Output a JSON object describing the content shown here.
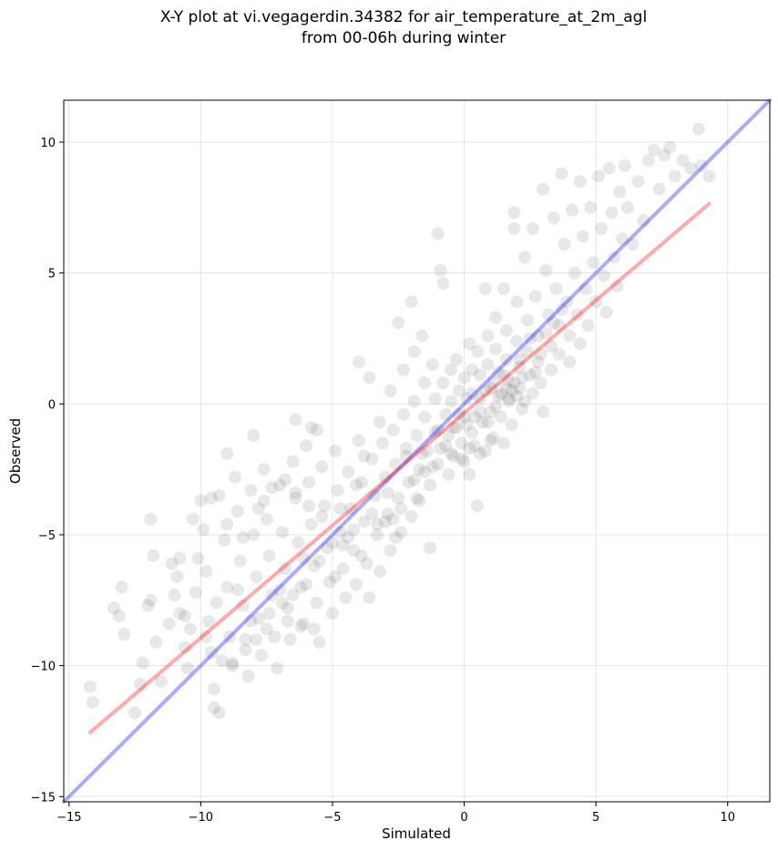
{
  "chart_data": {
    "type": "scatter",
    "title": [
      "X-Y plot at vi.vegagerdin.34382 for air_temperature_at_2m_agl",
      "from 00-06h during winter"
    ],
    "xlabel": "Simulated",
    "ylabel": "Observed",
    "xlim": [
      -15.2,
      11.6
    ],
    "ylim": [
      -15.2,
      11.6
    ],
    "xticks": [
      -15,
      -10,
      -5,
      0,
      5,
      10
    ],
    "yticks": [
      -15,
      -10,
      -5,
      0,
      5,
      10
    ],
    "xtick_labels": [
      "−15",
      "−10",
      "−5",
      "0",
      "5",
      "10"
    ],
    "ytick_labels": [
      "−15",
      "−10",
      "−5",
      "0",
      "5",
      "10"
    ],
    "grid": true,
    "colors": {
      "points": "#000000",
      "identity_line": "#0000ff",
      "fit_line": "#ff0000",
      "grid": "#e5e5e5"
    },
    "points": [
      [
        -14.2,
        -10.8
      ],
      [
        -14.1,
        -11.4
      ],
      [
        -13.3,
        -7.8
      ],
      [
        -13.1,
        -8.1
      ],
      [
        -13.0,
        -7.0
      ],
      [
        -12.9,
        -8.8
      ],
      [
        -12.5,
        -11.8
      ],
      [
        -12.3,
        -10.7
      ],
      [
        -12.2,
        -9.9
      ],
      [
        -12.0,
        -7.7
      ],
      [
        -11.9,
        -7.5
      ],
      [
        -11.8,
        -5.8
      ],
      [
        -11.9,
        -4.4
      ],
      [
        -11.7,
        -9.1
      ],
      [
        -11.5,
        -10.6
      ],
      [
        -11.1,
        -6.1
      ],
      [
        -11.0,
        -7.3
      ],
      [
        -10.9,
        -6.6
      ],
      [
        -10.8,
        -8.0
      ],
      [
        -10.6,
        -9.3
      ],
      [
        -10.5,
        -10.1
      ],
      [
        -10.4,
        -8.6
      ],
      [
        -10.2,
        -7.2
      ],
      [
        -10.1,
        -5.9
      ],
      [
        -10.0,
        -3.7
      ],
      [
        -9.9,
        -4.8
      ],
      [
        -9.8,
        -6.4
      ],
      [
        -9.7,
        -8.3
      ],
      [
        -9.6,
        -9.5
      ],
      [
        -9.5,
        -10.9
      ],
      [
        -9.5,
        -11.6
      ],
      [
        -9.3,
        -11.8
      ],
      [
        -9.3,
        -3.5
      ],
      [
        -9.1,
        -5.2
      ],
      [
        -9.0,
        -7.0
      ],
      [
        -8.9,
        -8.9
      ],
      [
        -8.8,
        -10.0
      ],
      [
        -8.7,
        -2.8
      ],
      [
        -8.6,
        -4.1
      ],
      [
        -8.5,
        -6.0
      ],
      [
        -8.4,
        -7.7
      ],
      [
        -8.3,
        -9.0
      ],
      [
        -8.2,
        -10.4
      ],
      [
        -8.1,
        -3.3
      ],
      [
        -8.0,
        -5.0
      ],
      [
        -8.0,
        -1.2
      ],
      [
        -7.9,
        -6.6
      ],
      [
        -7.8,
        -8.2
      ],
      [
        -7.7,
        -9.6
      ],
      [
        -7.6,
        -2.5
      ],
      [
        -7.5,
        -4.4
      ],
      [
        -7.4,
        -5.8
      ],
      [
        -7.3,
        -7.3
      ],
      [
        -7.2,
        -8.9
      ],
      [
        -7.1,
        -10.1
      ],
      [
        -7.0,
        -3.1
      ],
      [
        -6.9,
        -4.9
      ],
      [
        -6.8,
        -6.3
      ],
      [
        -6.7,
        -7.8
      ],
      [
        -6.6,
        -9.0
      ],
      [
        -6.5,
        -2.2
      ],
      [
        -6.4,
        -3.6
      ],
      [
        -6.4,
        -0.6
      ],
      [
        -6.3,
        -5.3
      ],
      [
        -6.2,
        -7.0
      ],
      [
        -6.1,
        -8.4
      ],
      [
        -6.0,
        -1.6
      ],
      [
        -5.9,
        -3.0
      ],
      [
        -5.8,
        -4.6
      ],
      [
        -5.8,
        -0.9
      ],
      [
        -5.7,
        -6.2
      ],
      [
        -5.6,
        -7.6
      ],
      [
        -5.5,
        -9.1
      ],
      [
        -5.4,
        -2.4
      ],
      [
        -5.3,
        -3.9
      ],
      [
        -5.2,
        -5.5
      ],
      [
        -5.1,
        -6.8
      ],
      [
        -5.0,
        -8.0
      ],
      [
        -4.9,
        -1.8
      ],
      [
        -4.8,
        -3.3
      ],
      [
        -4.7,
        -4.9
      ],
      [
        -4.6,
        -6.3
      ],
      [
        -4.5,
        -7.4
      ],
      [
        -4.4,
        -2.6
      ],
      [
        -4.3,
        -4.0
      ],
      [
        -4.2,
        -5.6
      ],
      [
        -4.1,
        -6.9
      ],
      [
        -4.0,
        1.6
      ],
      [
        -4.0,
        -1.4
      ],
      [
        -3.9,
        -3.0
      ],
      [
        -3.8,
        -4.5
      ],
      [
        -3.7,
        -6.1
      ],
      [
        -3.6,
        -7.4
      ],
      [
        -3.6,
        1.0
      ],
      [
        -3.5,
        -2.1
      ],
      [
        -3.4,
        -3.5
      ],
      [
        -3.3,
        -5.0
      ],
      [
        -3.2,
        -6.4
      ],
      [
        -3.2,
        -0.7
      ],
      [
        -3.1,
        -1.5
      ],
      [
        -3.0,
        -2.8
      ],
      [
        -2.9,
        -4.2
      ],
      [
        -2.8,
        -5.6
      ],
      [
        -2.8,
        0.5
      ],
      [
        -2.7,
        -1.0
      ],
      [
        -2.6,
        -2.3
      ],
      [
        -2.5,
        -3.6
      ],
      [
        -2.5,
        3.1
      ],
      [
        -2.4,
        -4.9
      ],
      [
        -2.3,
        1.3
      ],
      [
        -2.3,
        -0.4
      ],
      [
        -2.2,
        -1.7
      ],
      [
        -2.1,
        -3.0
      ],
      [
        -2.0,
        3.9
      ],
      [
        -2.0,
        -4.3
      ],
      [
        -1.9,
        2.0
      ],
      [
        -1.9,
        0.1
      ],
      [
        -1.8,
        -1.2
      ],
      [
        -1.7,
        -2.5
      ],
      [
        -1.7,
        -3.7
      ],
      [
        -1.6,
        2.6
      ],
      [
        -1.5,
        0.8
      ],
      [
        -1.5,
        -0.5
      ],
      [
        -1.4,
        -1.8
      ],
      [
        -1.3,
        -3.1
      ],
      [
        -1.3,
        -5.5
      ],
      [
        -1.2,
        1.5
      ],
      [
        -1.1,
        0.2
      ],
      [
        -1.1,
        -1.1
      ],
      [
        -1.0,
        -2.3
      ],
      [
        -1.0,
        6.5
      ],
      [
        -0.9,
        5.1
      ],
      [
        -0.8,
        4.6
      ],
      [
        -0.8,
        0.8
      ],
      [
        -0.7,
        -0.4
      ],
      [
        -0.7,
        -1.6
      ],
      [
        -0.6,
        -2.7
      ],
      [
        -0.5,
        1.3
      ],
      [
        -0.5,
        0.1
      ],
      [
        -0.4,
        -0.9
      ],
      [
        -0.4,
        -2.0
      ],
      [
        -0.3,
        1.7
      ],
      [
        -0.2,
        0.5
      ],
      [
        -0.2,
        -0.4
      ],
      [
        -0.1,
        -1.5
      ],
      [
        0.0,
        -2.2
      ],
      [
        0.0,
        1.0
      ],
      [
        0.1,
        0.2
      ],
      [
        0.1,
        -0.8
      ],
      [
        0.2,
        -2.7
      ],
      [
        0.2,
        2.3
      ],
      [
        0.3,
        1.3
      ],
      [
        0.3,
        0.4
      ],
      [
        0.4,
        -0.5
      ],
      [
        0.4,
        -1.6
      ],
      [
        0.5,
        -3.9
      ],
      [
        0.5,
        2.0
      ],
      [
        0.6,
        1.1
      ],
      [
        0.6,
        0.2
      ],
      [
        0.7,
        -0.7
      ],
      [
        0.8,
        -1.8
      ],
      [
        0.8,
        4.4
      ],
      [
        0.9,
        2.6
      ],
      [
        0.9,
        1.5
      ],
      [
        1.0,
        0.6
      ],
      [
        1.0,
        -0.3
      ],
      [
        1.1,
        -1.3
      ],
      [
        1.2,
        3.3
      ],
      [
        1.2,
        2.1
      ],
      [
        1.3,
        1.2
      ],
      [
        1.3,
        0.3
      ],
      [
        1.4,
        -0.5
      ],
      [
        1.5,
        -1.5
      ],
      [
        1.5,
        4.4
      ],
      [
        1.6,
        2.8
      ],
      [
        1.6,
        1.7
      ],
      [
        1.7,
        0.9
      ],
      [
        1.7,
        0.1
      ],
      [
        1.8,
        -0.8
      ],
      [
        1.9,
        7.3
      ],
      [
        1.9,
        6.7
      ],
      [
        2.0,
        3.9
      ],
      [
        2.0,
        2.4
      ],
      [
        2.1,
        1.4
      ],
      [
        2.1,
        0.6
      ],
      [
        2.2,
        -0.2
      ],
      [
        2.3,
        5.6
      ],
      [
        2.4,
        3.2
      ],
      [
        2.4,
        2.0
      ],
      [
        2.5,
        1.1
      ],
      [
        2.6,
        0.4
      ],
      [
        2.6,
        6.7
      ],
      [
        2.7,
        4.1
      ],
      [
        2.8,
        2.6
      ],
      [
        2.8,
        1.6
      ],
      [
        2.9,
        0.8
      ],
      [
        3.0,
        -0.3
      ],
      [
        3.0,
        8.2
      ],
      [
        3.1,
        5.1
      ],
      [
        3.2,
        3.4
      ],
      [
        3.3,
        2.2
      ],
      [
        3.3,
        1.3
      ],
      [
        3.4,
        7.1
      ],
      [
        3.5,
        4.4
      ],
      [
        3.6,
        3.0
      ],
      [
        3.6,
        1.9
      ],
      [
        3.7,
        8.8
      ],
      [
        3.8,
        6.1
      ],
      [
        3.9,
        3.9
      ],
      [
        4.0,
        2.6
      ],
      [
        4.0,
        1.6
      ],
      [
        4.1,
        7.4
      ],
      [
        4.2,
        5.0
      ],
      [
        4.3,
        3.4
      ],
      [
        4.4,
        2.3
      ],
      [
        4.4,
        8.5
      ],
      [
        4.5,
        6.4
      ],
      [
        4.6,
        4.4
      ],
      [
        4.7,
        3.0
      ],
      [
        4.8,
        7.5
      ],
      [
        4.9,
        5.4
      ],
      [
        5.0,
        3.9
      ],
      [
        5.1,
        8.7
      ],
      [
        5.2,
        6.7
      ],
      [
        5.3,
        4.9
      ],
      [
        5.4,
        3.5
      ],
      [
        5.5,
        9.0
      ],
      [
        5.6,
        7.3
      ],
      [
        5.7,
        5.6
      ],
      [
        5.8,
        4.5
      ],
      [
        5.9,
        8.1
      ],
      [
        6.0,
        6.3
      ],
      [
        6.1,
        9.1
      ],
      [
        6.2,
        7.5
      ],
      [
        6.4,
        6.1
      ],
      [
        6.6,
        8.5
      ],
      [
        6.8,
        7.0
      ],
      [
        7.0,
        9.3
      ],
      [
        7.2,
        9.7
      ],
      [
        7.4,
        8.2
      ],
      [
        7.6,
        9.5
      ],
      [
        7.8,
        9.8
      ],
      [
        8.0,
        8.7
      ],
      [
        8.3,
        9.3
      ],
      [
        8.6,
        9.0
      ],
      [
        8.9,
        10.5
      ],
      [
        9.0,
        9.1
      ],
      [
        9.3,
        8.7
      ],
      [
        -9.0,
        -1.9
      ],
      [
        -7.6,
        -3.7
      ],
      [
        -6.9,
        -7.6
      ],
      [
        -6.1,
        -5.9
      ],
      [
        -5.6,
        -1.0
      ],
      [
        -4.9,
        -6.6
      ],
      [
        -4.1,
        -3.1
      ],
      [
        -3.8,
        -2.0
      ],
      [
        -3.3,
        -4.6
      ],
      [
        -2.9,
        -3.4
      ],
      [
        -2.6,
        -5.1
      ],
      [
        -2.2,
        -2.0
      ],
      [
        -1.8,
        -3.6
      ],
      [
        -1.5,
        -2.6
      ],
      [
        -1.0,
        -1.0
      ],
      [
        -0.6,
        -1.2
      ],
      [
        -0.3,
        -0.9
      ],
      [
        0.0,
        -0.5
      ],
      [
        0.3,
        -1.1
      ],
      [
        0.6,
        -0.3
      ],
      [
        0.9,
        -0.7
      ],
      [
        1.2,
        -0.1
      ],
      [
        1.4,
        0.4
      ],
      [
        1.6,
        0.6
      ],
      [
        1.8,
        0.5
      ],
      [
        1.9,
        0.8
      ],
      [
        2.0,
        0.3
      ],
      [
        2.1,
        1.7
      ],
      [
        2.2,
        1.0
      ],
      [
        2.3,
        0.1
      ],
      [
        1.5,
        1.1
      ],
      [
        1.7,
        0.2
      ],
      [
        1.1,
        0.8
      ],
      [
        0.8,
        0.5
      ],
      [
        2.5,
        2.5
      ],
      [
        2.7,
        1.2
      ],
      [
        2.9,
        1.9
      ],
      [
        3.1,
        2.7
      ],
      [
        3.4,
        3.1
      ],
      [
        3.7,
        3.6
      ],
      [
        -5.4,
        -4.3
      ],
      [
        -4.7,
        -4.0
      ],
      [
        -4.4,
        -5.1
      ],
      [
        -3.9,
        -5.8
      ],
      [
        -3.5,
        -4.2
      ],
      [
        -3.0,
        -4.5
      ],
      [
        -2.7,
        -4.4
      ],
      [
        -2.4,
        -4.0
      ],
      [
        -1.9,
        -2.9
      ],
      [
        -1.6,
        -1.9
      ],
      [
        -1.2,
        -2.4
      ],
      [
        -0.9,
        -1.7
      ],
      [
        -0.5,
        -1.9
      ],
      [
        -0.1,
        -2.1
      ],
      [
        0.2,
        -1.7
      ],
      [
        0.6,
        -1.9
      ],
      [
        1.0,
        -1.4
      ],
      [
        -10.8,
        -5.9
      ],
      [
        -10.3,
        -4.4
      ],
      [
        -9.6,
        -3.6
      ],
      [
        -9.0,
        -4.6
      ],
      [
        -8.4,
        -5.1
      ],
      [
        -7.8,
        -4.0
      ],
      [
        -7.3,
        -3.2
      ],
      [
        -6.8,
        -2.9
      ],
      [
        -6.4,
        -3.4
      ],
      [
        -5.9,
        -3.9
      ],
      [
        -8.6,
        -7.1
      ],
      [
        -8.1,
        -8.3
      ],
      [
        -7.5,
        -8.6
      ],
      [
        -7.0,
        -7.1
      ],
      [
        -6.5,
        -7.3
      ],
      [
        -6.0,
        -6.9
      ],
      [
        -5.5,
        -6.0
      ],
      [
        -5.0,
        -5.3
      ],
      [
        -4.6,
        -5.4
      ],
      [
        -4.2,
        -4.8
      ],
      [
        -9.4,
        -7.6
      ],
      [
        -9.8,
        -8.9
      ],
      [
        -10.6,
        -8.1
      ],
      [
        -11.2,
        -8.4
      ],
      [
        -9.2,
        -9.8
      ],
      [
        -8.8,
        -9.9
      ],
      [
        -8.3,
        -9.4
      ],
      [
        -7.9,
        -9.0
      ],
      [
        -7.4,
        -8.0
      ],
      [
        -6.7,
        -8.3
      ],
      [
        -6.2,
        -8.5
      ],
      [
        -5.7,
        -8.6
      ]
    ],
    "lines": [
      {
        "label": "identity",
        "color": "#0000ff",
        "from": [
          -15.2,
          -15.2
        ],
        "to": [
          11.6,
          11.6
        ]
      },
      {
        "label": "regression fit",
        "color": "#ff0000",
        "from": [
          -14.2,
          -12.55
        ],
        "to": [
          9.3,
          7.65
        ]
      }
    ]
  }
}
